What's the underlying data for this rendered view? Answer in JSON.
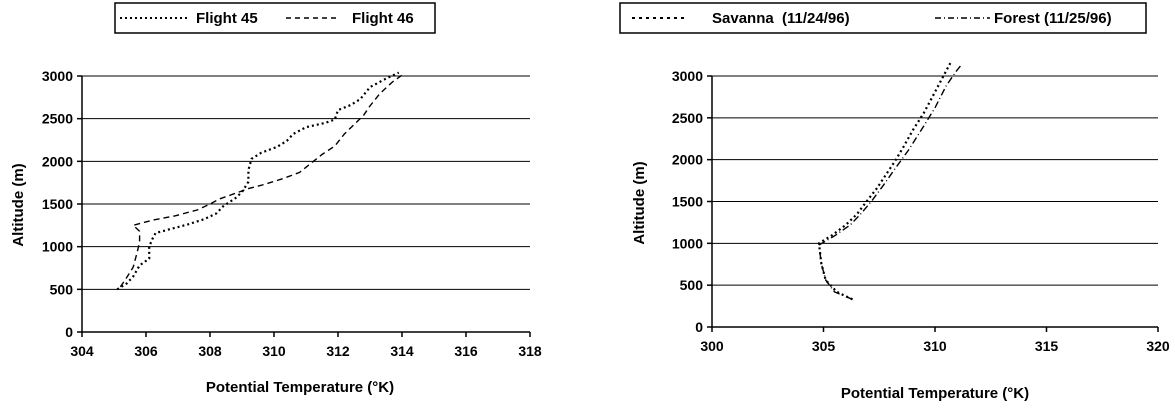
{
  "chart_data": [
    {
      "type": "line",
      "xlabel": "Potential Temperature (°K)",
      "ylabel": "Altitude (m)",
      "xlim": [
        304,
        318
      ],
      "ylim": [
        0,
        3000
      ],
      "xticks": [
        "304",
        "306",
        "308",
        "310",
        "312",
        "314",
        "316",
        "318"
      ],
      "yticks": [
        "0",
        "500",
        "1000",
        "1500",
        "2000",
        "2500",
        "3000"
      ],
      "grid": "horizontal",
      "legend_placement": "top",
      "series": [
        {
          "name": "Flight 45",
          "style": "dotted",
          "color": "#000000",
          "points": [
            [
              305.1,
              500
            ],
            [
              305.4,
              570
            ],
            [
              305.6,
              650
            ],
            [
              305.8,
              780
            ],
            [
              306.1,
              860
            ],
            [
              306.1,
              1000
            ],
            [
              306.2,
              1090
            ],
            [
              306.3,
              1160
            ],
            [
              306.7,
              1200
            ],
            [
              307.3,
              1260
            ],
            [
              307.8,
              1320
            ],
            [
              308.2,
              1390
            ],
            [
              308.4,
              1470
            ],
            [
              308.6,
              1520
            ],
            [
              308.8,
              1570
            ],
            [
              309.0,
              1640
            ],
            [
              309.2,
              1760
            ],
            [
              309.2,
              1900
            ],
            [
              309.3,
              2030
            ],
            [
              309.6,
              2100
            ],
            [
              310.1,
              2170
            ],
            [
              310.4,
              2240
            ],
            [
              310.6,
              2320
            ],
            [
              311.0,
              2400
            ],
            [
              311.6,
              2450
            ],
            [
              311.9,
              2490
            ],
            [
              312.0,
              2600
            ],
            [
              312.4,
              2660
            ],
            [
              312.7,
              2730
            ],
            [
              313.0,
              2870
            ],
            [
              313.5,
              2970
            ],
            [
              313.9,
              3040
            ]
          ]
        },
        {
          "name": "Flight 46",
          "style": "dashed",
          "color": "#000000",
          "points": [
            [
              305.2,
              530
            ],
            [
              305.4,
              640
            ],
            [
              305.6,
              760
            ],
            [
              305.7,
              900
            ],
            [
              305.8,
              1050
            ],
            [
              305.8,
              1180
            ],
            [
              305.6,
              1250
            ],
            [
              306.2,
              1310
            ],
            [
              306.9,
              1360
            ],
            [
              307.6,
              1430
            ],
            [
              308.0,
              1500
            ],
            [
              308.3,
              1560
            ],
            [
              308.6,
              1600
            ],
            [
              308.9,
              1640
            ],
            [
              309.2,
              1680
            ],
            [
              309.7,
              1730
            ],
            [
              310.3,
              1800
            ],
            [
              310.8,
              1870
            ],
            [
              311.1,
              1960
            ],
            [
              311.5,
              2080
            ],
            [
              311.9,
              2180
            ],
            [
              312.2,
              2320
            ],
            [
              312.5,
              2430
            ],
            [
              312.8,
              2540
            ],
            [
              313.0,
              2650
            ],
            [
              313.3,
              2790
            ],
            [
              313.7,
              2930
            ],
            [
              314.0,
              3010
            ]
          ]
        }
      ]
    },
    {
      "type": "line",
      "xlabel": "Potential Temperature (°K)",
      "ylabel": "Altitude (m)",
      "xlim": [
        300,
        320
      ],
      "ylim": [
        0,
        3000
      ],
      "xticks": [
        "300",
        "305",
        "310",
        "315",
        "320"
      ],
      "yticks": [
        "0",
        "500",
        "1000",
        "1500",
        "2000",
        "2500",
        "3000"
      ],
      "grid": "horizontal",
      "legend_placement": "top",
      "series": [
        {
          "name": "Savanna  (11/24/96)",
          "style": "dotted",
          "color": "#000000",
          "points": [
            [
              306.3,
              330
            ],
            [
              305.6,
              420
            ],
            [
              305.1,
              560
            ],
            [
              304.9,
              760
            ],
            [
              304.8,
              1000
            ],
            [
              305.4,
              1100
            ],
            [
              306.0,
              1220
            ],
            [
              306.5,
              1350
            ],
            [
              306.9,
              1490
            ],
            [
              307.4,
              1660
            ],
            [
              307.8,
              1820
            ],
            [
              308.2,
              1980
            ],
            [
              308.6,
              2160
            ],
            [
              309.0,
              2350
            ],
            [
              309.5,
              2560
            ],
            [
              309.9,
              2760
            ],
            [
              310.3,
              2960
            ],
            [
              310.7,
              3160
            ]
          ]
        },
        {
          "name": "Forest (11/25/96)",
          "style": "dash-dot",
          "color": "#000000",
          "points": [
            [
              306.3,
              330
            ],
            [
              305.5,
              420
            ],
            [
              305.1,
              560
            ],
            [
              304.9,
              760
            ],
            [
              304.8,
              980
            ],
            [
              305.5,
              1090
            ],
            [
              306.2,
              1220
            ],
            [
              306.7,
              1360
            ],
            [
              307.2,
              1520
            ],
            [
              307.7,
              1700
            ],
            [
              308.2,
              1890
            ],
            [
              308.8,
              2110
            ],
            [
              309.4,
              2360
            ],
            [
              310.0,
              2620
            ],
            [
              310.5,
              2880
            ],
            [
              310.9,
              3040
            ],
            [
              311.2,
              3140
            ]
          ]
        }
      ]
    }
  ]
}
